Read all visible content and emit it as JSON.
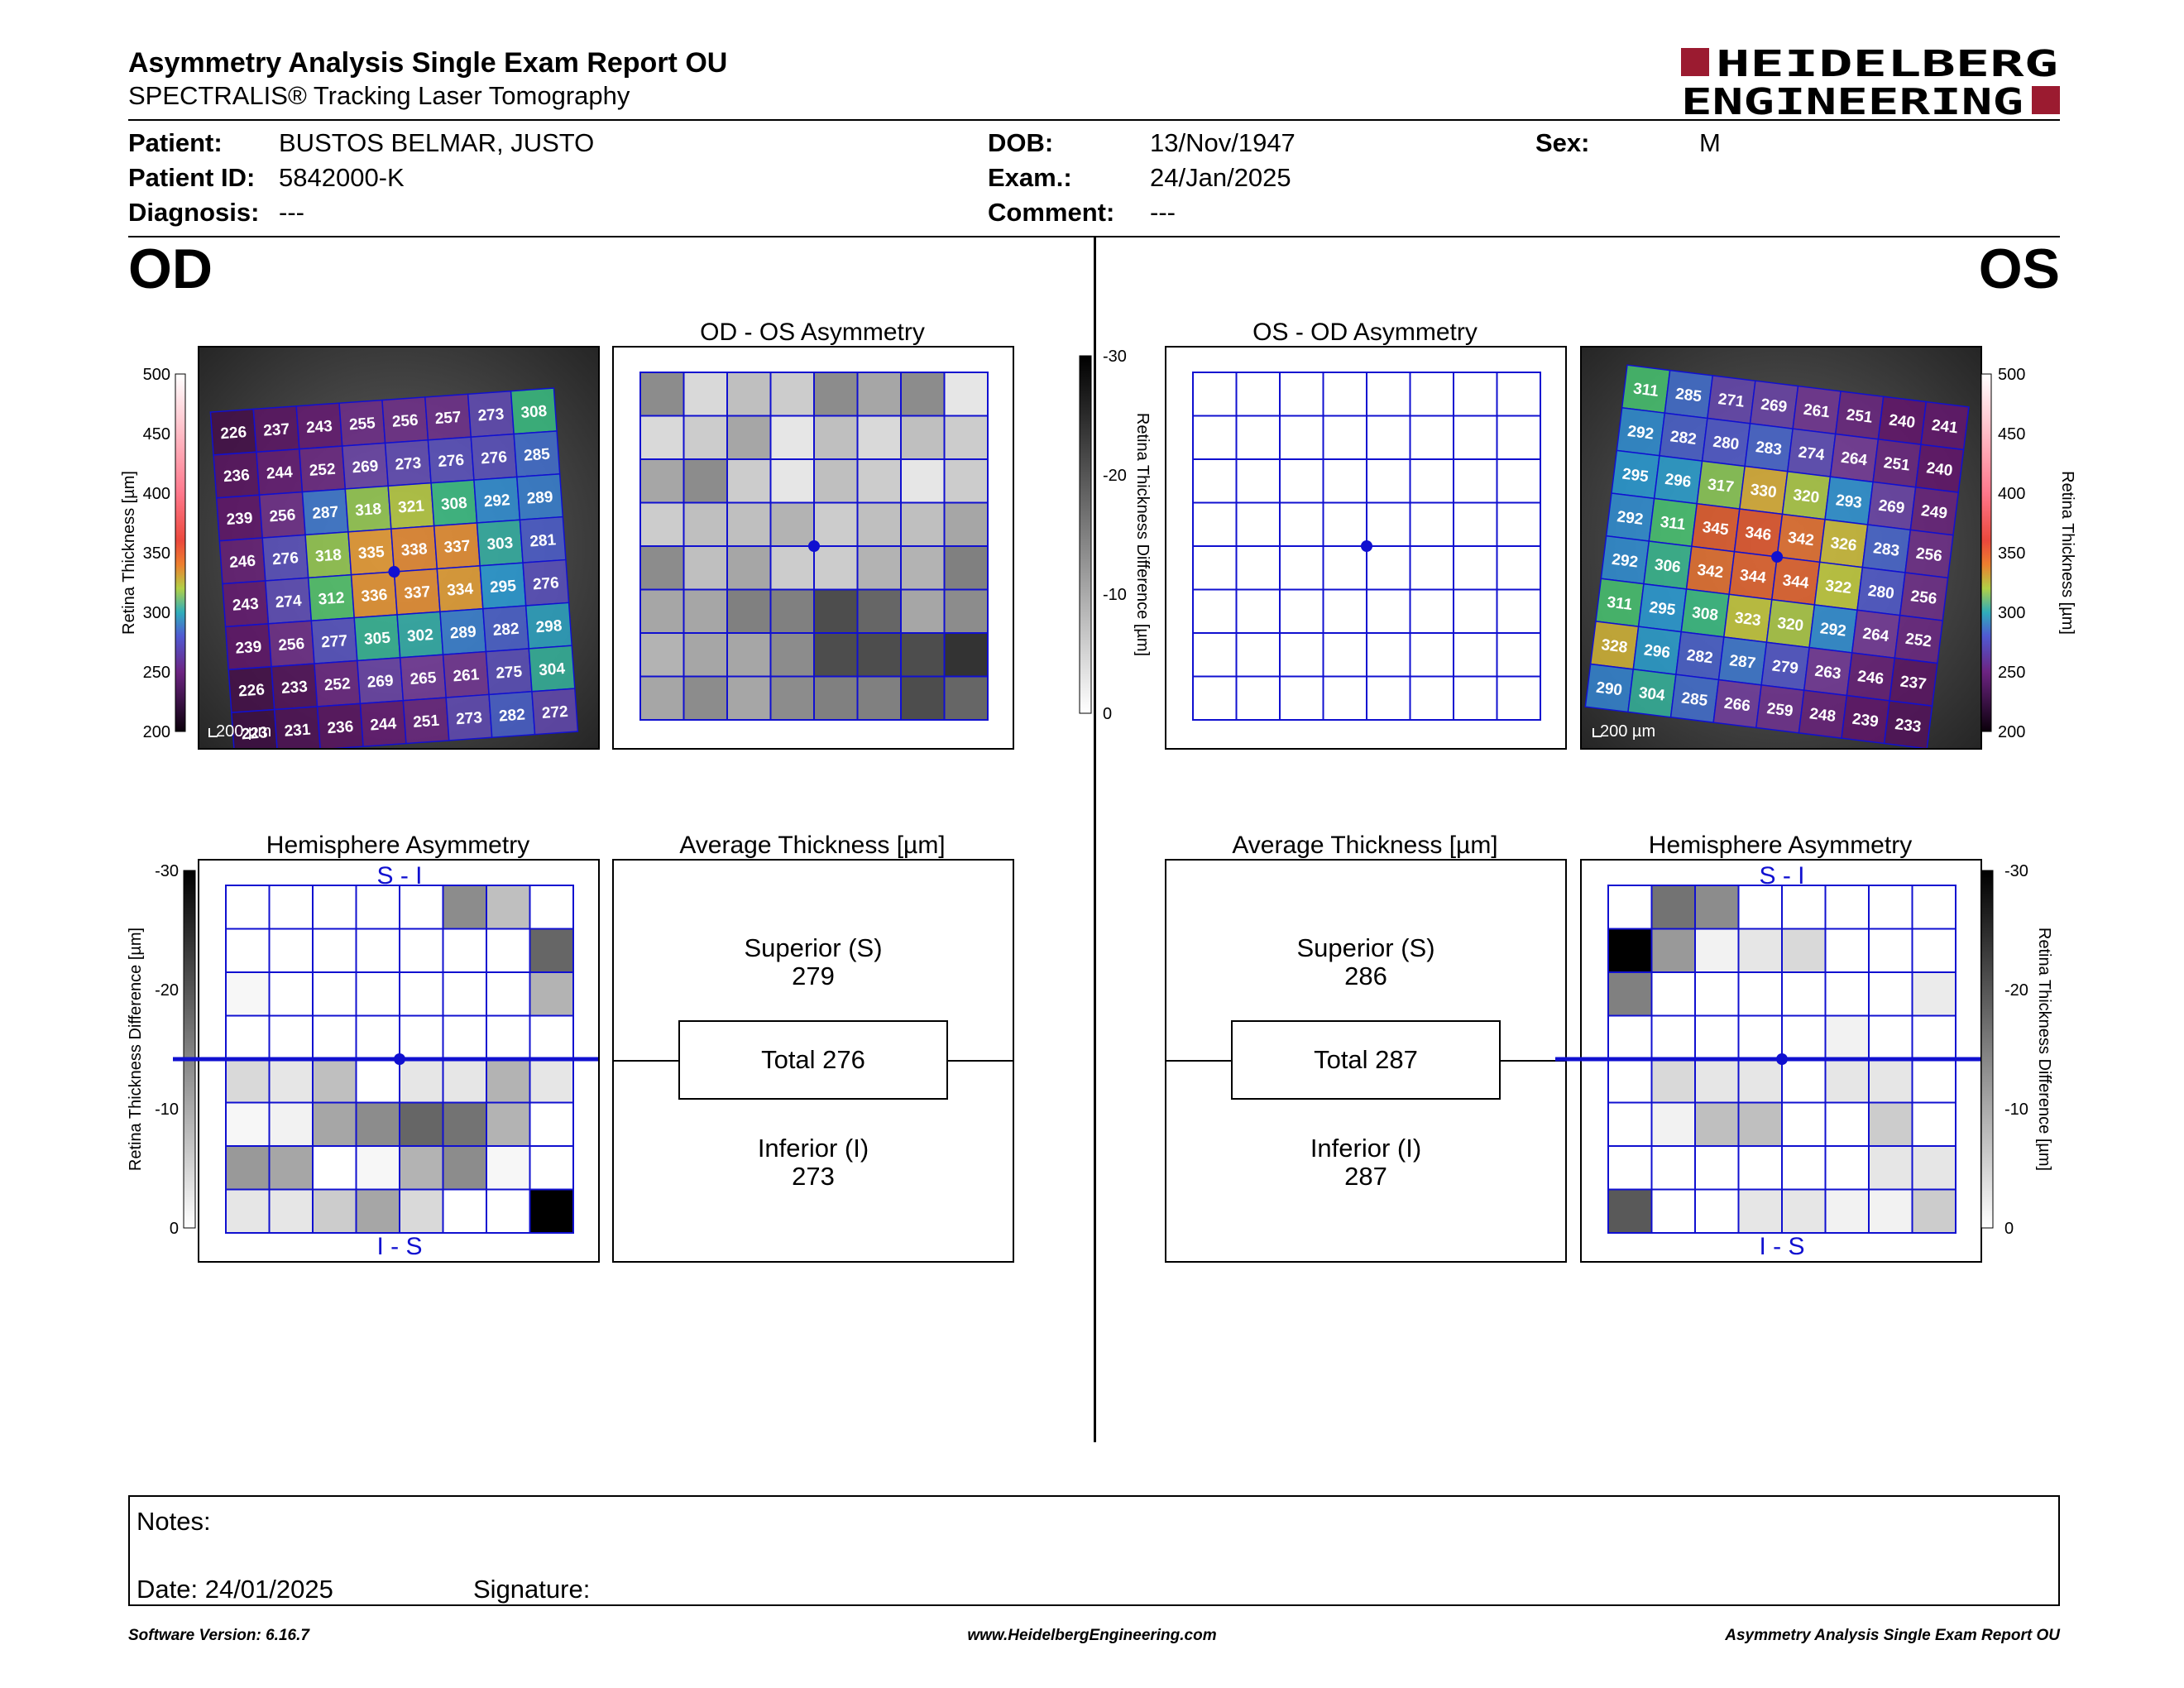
{
  "header": {
    "title": "Asymmetry Analysis Single Exam Report OU",
    "subtitle": "SPECTRALIS® Tracking Laser Tomography",
    "logo_line1": "HEIDELBERG",
    "logo_line2": "ENGINEERING"
  },
  "patient": {
    "patient_label": "Patient:",
    "patient_value": "BUSTOS BELMAR, JUSTO",
    "id_label": "Patient ID:",
    "id_value": "5842000-K",
    "diagnosis_label": "Diagnosis:",
    "diagnosis_value": "---",
    "dob_label": "DOB:",
    "dob_value": "13/Nov/1947",
    "exam_label": "Exam.:",
    "exam_value": "24/Jan/2025",
    "comment_label": "Comment:",
    "comment_value": "---",
    "sex_label": "Sex:",
    "sex_value": "M"
  },
  "od": {
    "eye_label": "OD",
    "asym_title": "OD - OS Asymmetry",
    "hemi_title": "Hemisphere Asymmetry",
    "hemi_top": "S - I",
    "hemi_bottom": "I - S",
    "avg_title": "Average Thickness [µm]",
    "superior_label": "Superior (S)",
    "superior_value": "279",
    "total_label": "Total 276",
    "inferior_label": "Inferior (I)",
    "inferior_value": "273",
    "scale_label": "200 µm",
    "thickness_grid": [
      [
        226,
        237,
        243,
        255,
        256,
        257,
        273,
        308
      ],
      [
        236,
        244,
        252,
        269,
        273,
        276,
        276,
        285
      ],
      [
        239,
        256,
        287,
        318,
        321,
        308,
        292,
        289
      ],
      [
        246,
        276,
        318,
        335,
        338,
        337,
        303,
        281
      ],
      [
        243,
        274,
        312,
        336,
        337,
        334,
        295,
        276
      ],
      [
        239,
        256,
        277,
        305,
        302,
        289,
        282,
        298
      ],
      [
        226,
        233,
        252,
        269,
        265,
        261,
        275,
        304
      ],
      [
        223,
        231,
        236,
        244,
        251,
        273,
        282,
        272
      ]
    ],
    "asym_gray": [
      [
        0.45,
        0.15,
        0.25,
        0.2,
        0.45,
        0.35,
        0.45,
        0.1
      ],
      [
        0.15,
        0.2,
        0.35,
        0.1,
        0.25,
        0.15,
        0.25,
        0.2
      ],
      [
        0.35,
        0.45,
        0.2,
        0.1,
        0.25,
        0.2,
        0.1,
        0.2
      ],
      [
        0.2,
        0.25,
        0.25,
        0.3,
        0.2,
        0.25,
        0.25,
        0.35
      ],
      [
        0.45,
        0.25,
        0.35,
        0.2,
        0.2,
        0.3,
        0.3,
        0.5
      ],
      [
        0.35,
        0.35,
        0.5,
        0.5,
        0.7,
        0.6,
        0.35,
        0.45
      ],
      [
        0.3,
        0.35,
        0.35,
        0.45,
        0.7,
        0.7,
        0.7,
        0.8
      ],
      [
        0.35,
        0.45,
        0.35,
        0.45,
        0.5,
        0.5,
        0.7,
        0.6
      ]
    ],
    "hemi_gray": [
      [
        0,
        0,
        0,
        0,
        0,
        0.45,
        0.25,
        0
      ],
      [
        0,
        0,
        0,
        0,
        0,
        0,
        0,
        0.6
      ],
      [
        0.03,
        0,
        0,
        0,
        0,
        0,
        0,
        0.3
      ],
      [
        0,
        0,
        0,
        0,
        0,
        0,
        0,
        0
      ],
      [
        0.15,
        0.1,
        0.25,
        0,
        0.1,
        0.1,
        0.3,
        0.1
      ],
      [
        0.03,
        0.05,
        0.35,
        0.45,
        0.6,
        0.55,
        0.3,
        0
      ],
      [
        0.4,
        0.35,
        0,
        0.03,
        0.3,
        0.45,
        0.03,
        0
      ],
      [
        0.1,
        0.1,
        0.2,
        0.35,
        0.15,
        0,
        0,
        1.0
      ]
    ]
  },
  "os": {
    "eye_label": "OS",
    "asym_title": "OS - OD Asymmetry",
    "hemi_title": "Hemisphere Asymmetry",
    "hemi_top": "S - I",
    "hemi_bottom": "I - S",
    "avg_title": "Average Thickness [µm]",
    "superior_label": "Superior (S)",
    "superior_value": "286",
    "total_label": "Total 287",
    "inferior_label": "Inferior (I)",
    "inferior_value": "287",
    "scale_label": "200 µm",
    "thickness_grid": [
      [
        311,
        285,
        271,
        269,
        261,
        251,
        240,
        241
      ],
      [
        292,
        282,
        280,
        283,
        274,
        264,
        251,
        240
      ],
      [
        295,
        296,
        317,
        330,
        320,
        293,
        269,
        249
      ],
      [
        292,
        311,
        345,
        346,
        342,
        326,
        283,
        256
      ],
      [
        292,
        306,
        342,
        344,
        344,
        322,
        280,
        256
      ],
      [
        311,
        295,
        308,
        323,
        320,
        292,
        264,
        252
      ],
      [
        328,
        296,
        282,
        287,
        279,
        263,
        246,
        237
      ],
      [
        290,
        304,
        285,
        266,
        259,
        248,
        239,
        233
      ]
    ],
    "hemi_gray": [
      [
        0,
        0.55,
        0.45,
        0,
        0,
        0,
        0,
        0
      ],
      [
        1.0,
        0.4,
        0.05,
        0.1,
        0.15,
        0,
        0,
        0
      ],
      [
        0.5,
        0,
        0,
        0,
        0,
        0,
        0,
        0.08
      ],
      [
        0,
        0,
        0,
        0,
        0,
        0.05,
        0,
        0
      ],
      [
        0,
        0.15,
        0.1,
        0.1,
        0,
        0.1,
        0.1,
        0
      ],
      [
        0,
        0.05,
        0.25,
        0.25,
        0,
        0,
        0.2,
        0
      ],
      [
        0,
        0,
        0,
        0,
        0,
        0,
        0.1,
        0.1
      ],
      [
        0.65,
        0,
        0,
        0.1,
        0.1,
        0.05,
        0.05,
        0.2
      ]
    ]
  },
  "thickness_axis": {
    "label": "Retina Thickness [µm]",
    "ticks": [
      "500",
      "450",
      "400",
      "350",
      "300",
      "250",
      "200"
    ]
  },
  "difference_axis": {
    "label": "Retina Thickness Difference [µm]",
    "ticks": [
      "-30",
      "-20",
      "-10",
      "0"
    ]
  },
  "notes": {
    "notes_label": "Notes:",
    "date_label": "Date: 24/01/2025",
    "signature_label": "Signature:"
  },
  "footer": {
    "software": "Software Version: 6.16.7",
    "website": "www.HeidelbergEngineering.com",
    "report": "Asymmetry Analysis Single Exam Report OU"
  },
  "colors": {
    "grid_blue": "#1010d0",
    "logo_red": "#9b1b30"
  }
}
